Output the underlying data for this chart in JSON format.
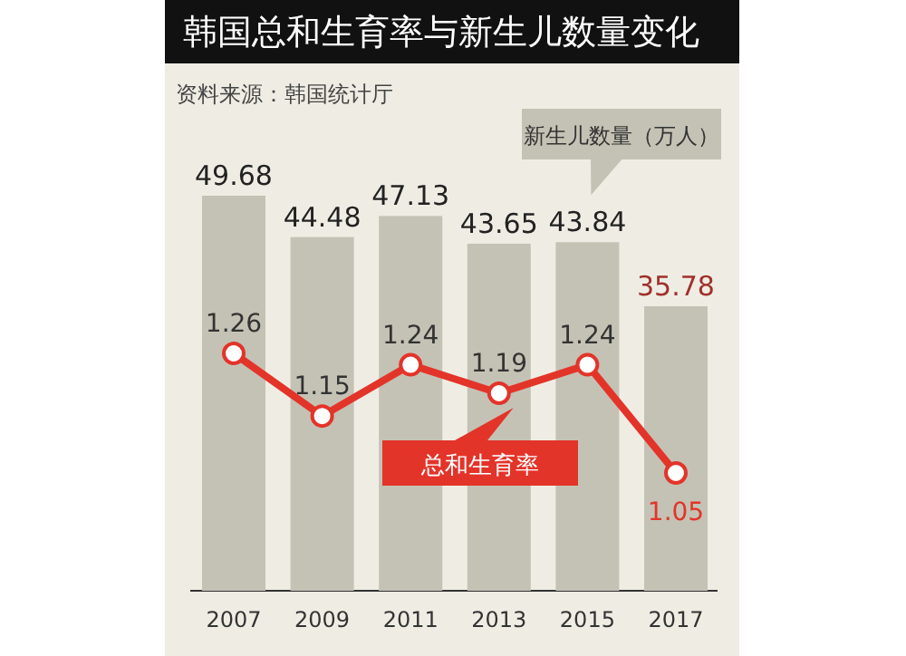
{
  "chart_data": {
    "type": "bar",
    "title": "韩国总和生育率与新生儿数量变化",
    "annotations": [
      "资料来源：韩国统计厅"
    ],
    "categories": [
      "2007",
      "2009",
      "2011",
      "2013",
      "2015",
      "2017"
    ],
    "legend": "center",
    "data_labels": true,
    "marker": "circle",
    "series": [
      {
        "name": "新生儿数量（万人）",
        "color": "#c4c2b4",
        "values": [
          49.68,
          44.48,
          47.13,
          43.65,
          43.84,
          35.78
        ]
      },
      {
        "name": "总和生育率",
        "type": "line",
        "axis": "y2",
        "color": "#e3342a",
        "values": [
          1.26,
          1.15,
          1.24,
          1.19,
          1.24,
          1.05
        ]
      }
    ]
  }
}
